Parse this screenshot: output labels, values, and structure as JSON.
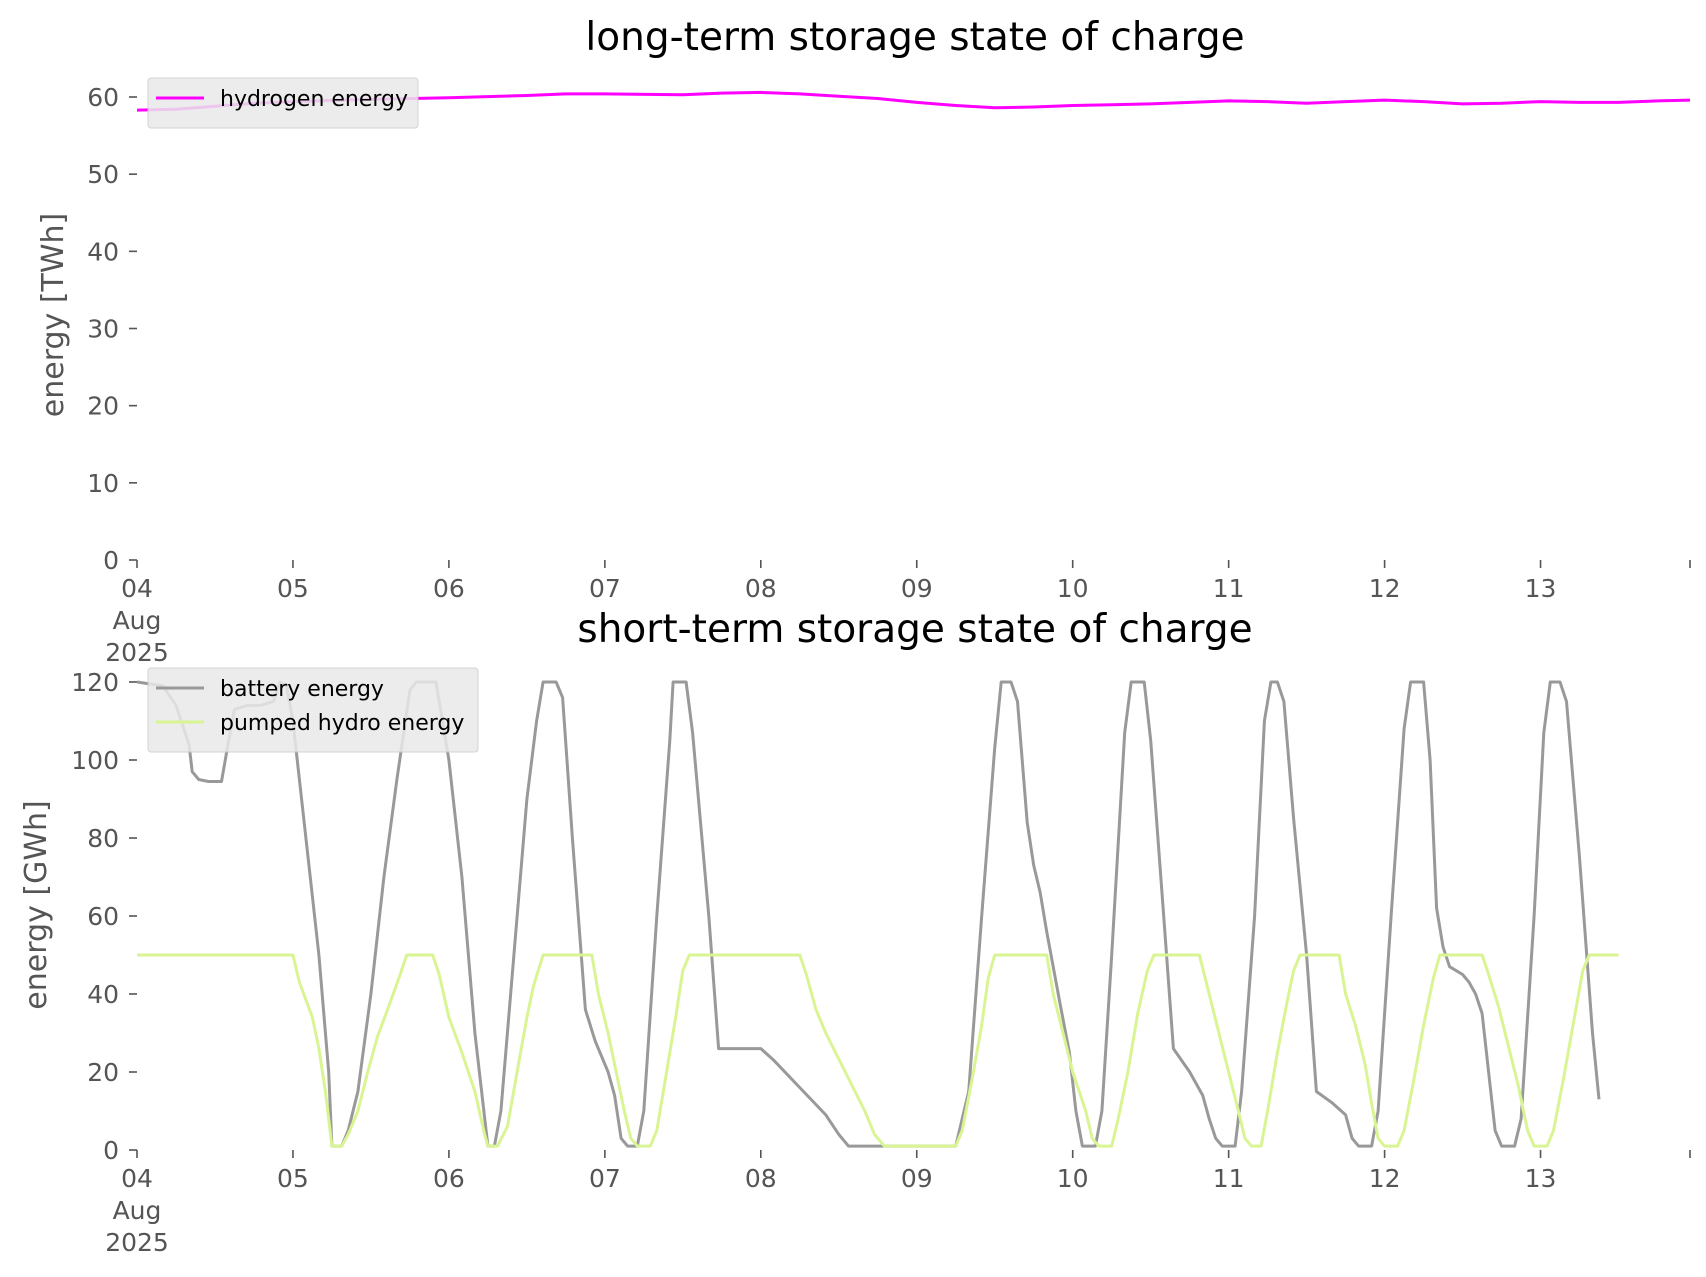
{
  "chart_data": [
    {
      "type": "line",
      "title": "long-term storage state of charge",
      "xlabel": "",
      "ylabel": "energy [TWh]",
      "xlim": [
        0,
        239
      ],
      "ylim": [
        0,
        60
      ],
      "yticks": [
        0,
        10,
        20,
        30,
        40,
        50,
        60
      ],
      "x_tick_labels": [
        "04\nAug\n2025",
        "05",
        "06",
        "07",
        "08",
        "09",
        "10",
        "11",
        "12",
        "13"
      ],
      "x_tick_positions_hours": [
        0,
        24,
        48,
        72,
        96,
        120,
        144,
        168,
        192,
        216
      ],
      "grid": false,
      "legend_position": "upper-left",
      "x_hours": [
        0,
        6,
        12,
        18,
        24,
        36,
        48,
        60,
        66,
        72,
        84,
        90,
        96,
        102,
        108,
        114,
        120,
        126,
        132,
        138,
        144,
        150,
        156,
        162,
        168,
        174,
        180,
        186,
        192,
        198,
        204,
        210,
        216,
        222,
        228,
        234,
        239
      ],
      "series": [
        {
          "name": "hydrogen energy",
          "color": "#ff00ff",
          "values": [
            58.3,
            58.4,
            58.8,
            59.2,
            59.4,
            59.7,
            59.9,
            60.2,
            60.4,
            60.4,
            60.3,
            60.5,
            60.6,
            60.4,
            60.1,
            59.8,
            59.3,
            58.9,
            58.6,
            58.7,
            58.9,
            59.0,
            59.1,
            59.3,
            59.5,
            59.4,
            59.2,
            59.4,
            59.6,
            59.4,
            59.1,
            59.2,
            59.4,
            59.3,
            59.3,
            59.5,
            59.6
          ]
        }
      ]
    },
    {
      "type": "line",
      "title": "short-term storage state of charge",
      "xlabel": "",
      "ylabel": "energy [GWh]",
      "xlim": [
        0,
        239
      ],
      "ylim": [
        0,
        120
      ],
      "yticks": [
        0,
        20,
        40,
        60,
        80,
        100,
        120
      ],
      "x_tick_labels": [
        "04\nAug\n2025",
        "05",
        "06",
        "07",
        "08",
        "09",
        "10",
        "11",
        "12",
        "13"
      ],
      "x_tick_positions_hours": [
        0,
        24,
        48,
        72,
        96,
        120,
        144,
        168,
        192,
        216
      ],
      "grid": false,
      "legend_position": "upper-left",
      "series": [
        {
          "name": "battery energy",
          "color": "#999999",
          "points": [
            [
              0,
              120
            ],
            [
              4,
              119
            ],
            [
              6,
              114
            ],
            [
              8,
              104
            ],
            [
              8.5,
              97
            ],
            [
              9.5,
              95
            ],
            [
              11,
              94.5
            ],
            [
              13,
              94.5
            ],
            [
              14,
              104
            ],
            [
              15,
              113
            ],
            [
              17,
              114
            ],
            [
              19,
              114
            ],
            [
              21,
              115
            ],
            [
              22,
              120
            ],
            [
              23,
              119
            ],
            [
              24,
              110
            ],
            [
              26,
              80
            ],
            [
              28,
              50
            ],
            [
              29.5,
              20
            ],
            [
              30,
              1
            ],
            [
              31.5,
              1
            ],
            [
              32.5,
              5
            ],
            [
              34,
              15
            ],
            [
              36,
              40
            ],
            [
              38,
              70
            ],
            [
              40,
              95
            ],
            [
              42,
              118
            ],
            [
              43,
              120
            ],
            [
              46,
              120
            ],
            [
              47,
              110
            ],
            [
              48,
              100
            ],
            [
              50,
              70
            ],
            [
              52,
              30
            ],
            [
              54,
              1
            ],
            [
              55,
              1
            ],
            [
              56,
              10
            ],
            [
              58,
              50
            ],
            [
              60,
              90
            ],
            [
              61.5,
              110
            ],
            [
              62.5,
              120
            ],
            [
              64.5,
              120
            ],
            [
              65.5,
              116
            ],
            [
              67,
              80
            ],
            [
              69,
              36
            ],
            [
              70.5,
              28
            ],
            [
              72.5,
              20
            ],
            [
              73.5,
              14
            ],
            [
              74.5,
              3
            ],
            [
              75.5,
              1
            ],
            [
              77,
              1
            ],
            [
              78,
              10
            ],
            [
              80,
              60
            ],
            [
              82,
              105
            ],
            [
              82.5,
              120
            ],
            [
              84.5,
              120
            ],
            [
              85.5,
              107
            ],
            [
              88,
              60
            ],
            [
              89.5,
              26
            ],
            [
              96,
              26
            ],
            [
              98,
              23
            ],
            [
              102,
              16
            ],
            [
              106,
              9
            ],
            [
              108,
              4
            ],
            [
              109.5,
              1
            ],
            [
              113,
              1
            ],
            [
              119,
              1
            ],
            [
              126,
              1
            ],
            [
              128,
              15
            ],
            [
              130,
              60
            ],
            [
              132,
              103
            ],
            [
              133,
              120
            ],
            [
              134.5,
              120
            ],
            [
              135.5,
              115
            ],
            [
              137,
              84
            ],
            [
              138,
              73
            ],
            [
              139,
              66
            ],
            [
              140,
              56
            ],
            [
              142,
              38
            ],
            [
              143.5,
              25
            ],
            [
              144.5,
              10
            ],
            [
              145.5,
              1
            ],
            [
              147.5,
              1
            ],
            [
              148.5,
              10
            ],
            [
              150,
              50
            ],
            [
              152,
              107
            ],
            [
              153,
              120
            ],
            [
              155,
              120
            ],
            [
              156,
              105
            ],
            [
              158,
              60
            ],
            [
              159.5,
              26
            ],
            [
              162,
              20
            ],
            [
              164,
              14
            ],
            [
              165,
              8
            ],
            [
              166,
              3
            ],
            [
              167,
              1
            ],
            [
              169,
              1
            ],
            [
              170,
              15
            ],
            [
              172,
              60
            ],
            [
              173.5,
              110
            ],
            [
              174.5,
              120
            ],
            [
              175.5,
              120
            ],
            [
              176.5,
              115
            ],
            [
              178,
              85
            ],
            [
              180,
              50
            ],
            [
              181.5,
              15
            ],
            [
              184,
              12
            ],
            [
              186,
              9
            ],
            [
              187,
              3
            ],
            [
              188,
              1
            ],
            [
              190,
              1
            ],
            [
              191,
              10
            ],
            [
              193,
              60
            ],
            [
              195,
              108
            ],
            [
              196,
              120
            ],
            [
              198,
              120
            ],
            [
              199,
              100
            ],
            [
              200,
              62
            ],
            [
              201,
              52
            ],
            [
              202,
              47
            ],
            [
              204,
              45
            ],
            [
              205,
              43
            ],
            [
              206,
              40
            ],
            [
              207,
              35
            ],
            [
              208,
              20
            ],
            [
              209,
              5
            ],
            [
              210,
              1
            ],
            [
              212,
              1
            ],
            [
              213,
              8
            ],
            [
              215,
              60
            ],
            [
              216.5,
              107
            ],
            [
              217.5,
              120
            ],
            [
              219,
              120
            ],
            [
              220,
              115
            ],
            [
              222,
              75
            ],
            [
              224,
              30
            ],
            [
              225,
              13
            ]
          ]
        },
        {
          "name": "pumped hydro energy",
          "color": "#d9f593",
          "points": [
            [
              0,
              50
            ],
            [
              24,
              50
            ],
            [
              25,
              43
            ],
            [
              27,
              34
            ],
            [
              28,
              26
            ],
            [
              29,
              15
            ],
            [
              30,
              1
            ],
            [
              31.5,
              1
            ],
            [
              32.5,
              4
            ],
            [
              34,
              10
            ],
            [
              35.5,
              20
            ],
            [
              37,
              29
            ],
            [
              39,
              38
            ],
            [
              40.5,
              45
            ],
            [
              41.5,
              50
            ],
            [
              45.5,
              50
            ],
            [
              46.5,
              45
            ],
            [
              48,
              34
            ],
            [
              50,
              25
            ],
            [
              52,
              15
            ],
            [
              53.5,
              4
            ],
            [
              54,
              1
            ],
            [
              55.5,
              1
            ],
            [
              57,
              6
            ],
            [
              58.5,
              20
            ],
            [
              60,
              34
            ],
            [
              61,
              42
            ],
            [
              62.5,
              50
            ],
            [
              70,
              50
            ],
            [
              71,
              40
            ],
            [
              72.5,
              30
            ],
            [
              74,
              18
            ],
            [
              75,
              10
            ],
            [
              76,
              3
            ],
            [
              77,
              1
            ],
            [
              79,
              1
            ],
            [
              80,
              5
            ],
            [
              81.5,
              20
            ],
            [
              83,
              35
            ],
            [
              84,
              46
            ],
            [
              85,
              50
            ],
            [
              102,
              50
            ],
            [
              103,
              45
            ],
            [
              104.5,
              36
            ],
            [
              106,
              30
            ],
            [
              107.5,
              25
            ],
            [
              109,
              20
            ],
            [
              110.5,
              15
            ],
            [
              112,
              10
            ],
            [
              113.5,
              4
            ],
            [
              115,
              1
            ],
            [
              120,
              1
            ],
            [
              126,
              1
            ],
            [
              127,
              5
            ],
            [
              128.5,
              18
            ],
            [
              130,
              32
            ],
            [
              131,
              44
            ],
            [
              132,
              50
            ],
            [
              140,
              50
            ],
            [
              141,
              40
            ],
            [
              142.5,
              30
            ],
            [
              144,
              20
            ],
            [
              146,
              10
            ],
            [
              147,
              3
            ],
            [
              148,
              1
            ],
            [
              150,
              1
            ],
            [
              151,
              8
            ],
            [
              152.5,
              20
            ],
            [
              154,
              35
            ],
            [
              155.5,
              46
            ],
            [
              156.5,
              50
            ],
            [
              163.5,
              50
            ],
            [
              165,
              40
            ],
            [
              166.5,
              30
            ],
            [
              168,
              20
            ],
            [
              169.5,
              10
            ],
            [
              170.5,
              3
            ],
            [
              171.5,
              1
            ],
            [
              173,
              1
            ],
            [
              174,
              10
            ],
            [
              175.5,
              25
            ],
            [
              177,
              38
            ],
            [
              178,
              46
            ],
            [
              179,
              50
            ],
            [
              185,
              50
            ],
            [
              186,
              40
            ],
            [
              187.5,
              32
            ],
            [
              189,
              22
            ],
            [
              190,
              12
            ],
            [
              191,
              3
            ],
            [
              192,
              1
            ],
            [
              194,
              1
            ],
            [
              195,
              5
            ],
            [
              196.5,
              18
            ],
            [
              198,
              32
            ],
            [
              199.5,
              44
            ],
            [
              200.5,
              50
            ],
            [
              207,
              50
            ],
            [
              208,
              45
            ],
            [
              209.5,
              37
            ],
            [
              211,
              27
            ],
            [
              212.5,
              17
            ],
            [
              214,
              5
            ],
            [
              215,
              1
            ],
            [
              217,
              1
            ],
            [
              218,
              5
            ],
            [
              219.5,
              18
            ],
            [
              221,
              32
            ],
            [
              222.5,
              46
            ],
            [
              223.5,
              50
            ],
            [
              228,
              50
            ]
          ]
        }
      ]
    }
  ]
}
